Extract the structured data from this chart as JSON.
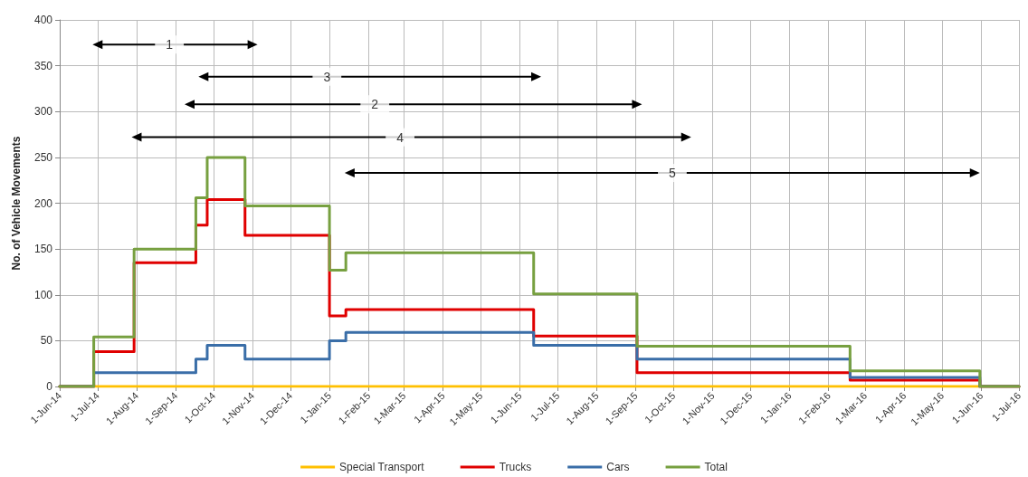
{
  "chart_data": {
    "type": "step",
    "ylabel": "No. of Vehicle Movements",
    "x": [
      "2014-06-01",
      "2014-06-28",
      "2014-07-30",
      "2014-09-17",
      "2014-09-26",
      "2014-10-26",
      "2015-01-01",
      "2015-01-14",
      "2015-06-12",
      "2015-09-02",
      "2016-02-18",
      "2016-05-31",
      "2016-07-01"
    ],
    "series": [
      {
        "name": "Special Transport",
        "color": "#ffc000",
        "values": [
          0,
          0,
          0,
          0,
          0,
          0,
          0,
          0,
          0,
          0,
          0,
          0,
          0
        ]
      },
      {
        "name": "Trucks",
        "color": "#e00000",
        "values": [
          0,
          38,
          135,
          176,
          204,
          165,
          77,
          84,
          55,
          15,
          7,
          0,
          0
        ]
      },
      {
        "name": "Cars",
        "color": "#3a6ea8",
        "values": [
          0,
          15,
          15,
          30,
          45,
          30,
          50,
          59,
          45,
          30,
          10,
          0,
          0
        ]
      },
      {
        "name": "Total",
        "color": "#77a040",
        "values": [
          0,
          54,
          150,
          206,
          250,
          197,
          127,
          146,
          101,
          44,
          17,
          0,
          0
        ]
      },
      {
        "type": "line",
        "marker": "triangle",
        "color": "#000000",
        "x": [
          "2014-07-01",
          "2014-11-01"
        ],
        "values": [
          373,
          373
        ]
      },
      {
        "type": "line",
        "marker": "triangle",
        "color": "#000000",
        "x": [
          "2014-09-23",
          "2015-06-14"
        ],
        "values": [
          338,
          338
        ]
      },
      {
        "type": "line",
        "marker": "triangle",
        "color": "#000000",
        "x": [
          "2014-09-12",
          "2015-09-02"
        ],
        "values": [
          308,
          308
        ]
      },
      {
        "type": "line",
        "marker": "triangle",
        "color": "#000000",
        "x": [
          "2014-08-01",
          "2015-10-11"
        ],
        "values": [
          272,
          272
        ]
      },
      {
        "type": "line",
        "marker": "triangle",
        "color": "#000000",
        "x": [
          "2015-01-17",
          "2016-05-27"
        ],
        "values": [
          233,
          233
        ]
      }
    ],
    "annotations": [
      {
        "text": "1",
        "x": "2014-08-27",
        "y": 373
      },
      {
        "text": "3",
        "x": "2014-12-30",
        "y": 338
      },
      {
        "text": "2",
        "x": "2015-02-06",
        "y": 308
      },
      {
        "text": "4",
        "x": "2015-02-26",
        "y": 272
      },
      {
        "text": "5",
        "x": "2015-09-30",
        "y": 233
      }
    ],
    "xlim": [
      "2014-06-01",
      "2016-07-01"
    ],
    "xticks": [
      {
        "value": "2014-06-01",
        "label": "1-Jun-14"
      },
      {
        "value": "2014-07-01",
        "label": "1-Jul-14"
      },
      {
        "value": "2014-08-01",
        "label": "1-Aug-14"
      },
      {
        "value": "2014-09-01",
        "label": "1-Sep-14"
      },
      {
        "value": "2014-10-01",
        "label": "1-Oct-14"
      },
      {
        "value": "2014-11-01",
        "label": "1-Nov-14"
      },
      {
        "value": "2014-12-01",
        "label": "1-Dec-14"
      },
      {
        "value": "2015-01-01",
        "label": "1-Jan-15"
      },
      {
        "value": "2015-02-01",
        "label": "1-Feb-15"
      },
      {
        "value": "2015-03-01",
        "label": "1-Mar-15"
      },
      {
        "value": "2015-04-01",
        "label": "1-Apr-15"
      },
      {
        "value": "2015-05-01",
        "label": "1-May-15"
      },
      {
        "value": "2015-06-01",
        "label": "1-Jun-15"
      },
      {
        "value": "2015-07-01",
        "label": "1-Jul-15"
      },
      {
        "value": "2015-08-01",
        "label": "1-Aug-15"
      },
      {
        "value": "2015-09-01",
        "label": "1-Sep-15"
      },
      {
        "value": "2015-10-01",
        "label": "1-Oct-15"
      },
      {
        "value": "2015-11-01",
        "label": "1-Nov-15"
      },
      {
        "value": "2015-12-01",
        "label": "1-Dec-15"
      },
      {
        "value": "2016-01-01",
        "label": "1-Jan-16"
      },
      {
        "value": "2016-02-01",
        "label": "1-Feb-16"
      },
      {
        "value": "2016-03-01",
        "label": "1-Mar-16"
      },
      {
        "value": "2016-04-01",
        "label": "1-Apr-16"
      },
      {
        "value": "2016-05-01",
        "label": "1-May-16"
      },
      {
        "value": "2016-06-01",
        "label": "1-Jun-16"
      },
      {
        "value": "2016-07-01",
        "label": "1-Jul-16"
      }
    ],
    "ylim": [
      0,
      400
    ],
    "yticks": [
      0,
      50,
      100,
      150,
      200,
      250,
      300,
      350,
      400
    ],
    "grid": true,
    "legend": "bottom",
    "marker": "none",
    "line_style": "solid"
  }
}
